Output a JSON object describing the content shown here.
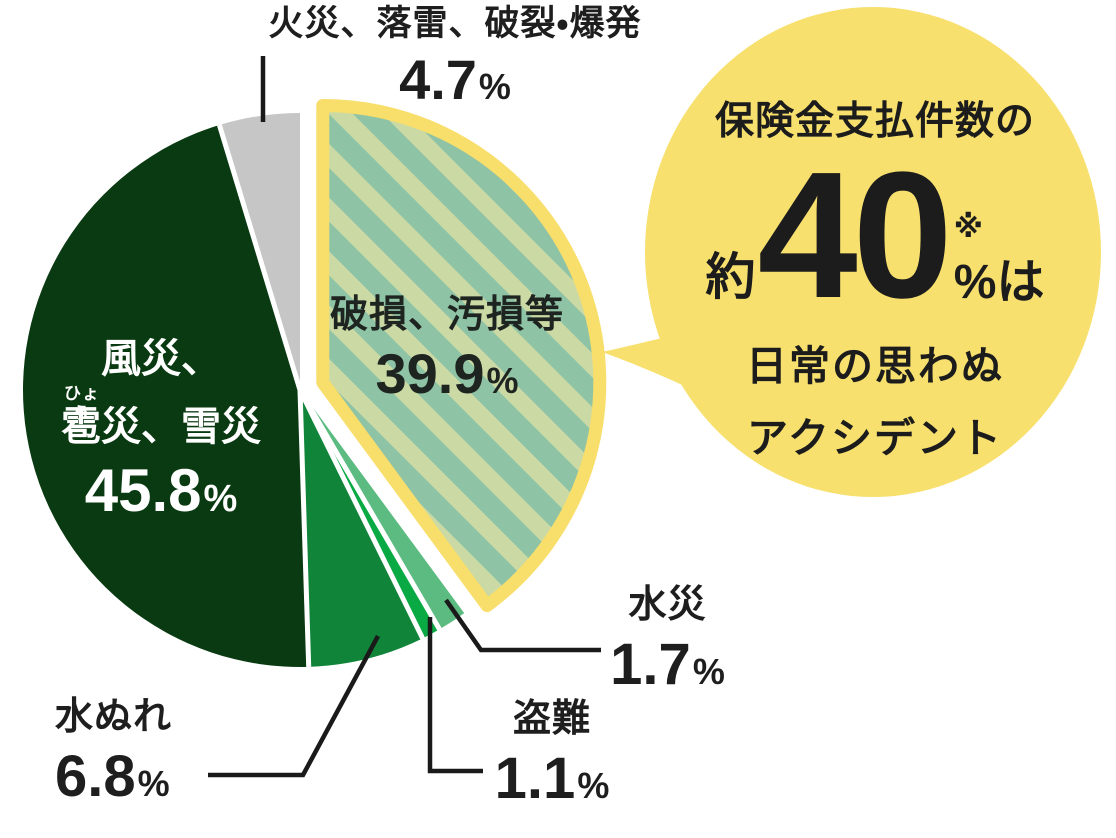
{
  "chart_data": {
    "type": "pie",
    "title": "",
    "start_angle_deg": 0,
    "direction": "clockwise",
    "unit": "%",
    "slices": [
      {
        "id": "breakage",
        "label": "破損、汚損等",
        "value": 39.9,
        "exploded": true,
        "color_base": "#8FC3A6",
        "color_stripe": "#CBDAA5",
        "outline": "#F8DE6A"
      },
      {
        "id": "flood",
        "label": "水災",
        "value": 1.7,
        "exploded": false,
        "color": "#5CBB80"
      },
      {
        "id": "theft",
        "label": "盗難",
        "value": 1.1,
        "exploded": false,
        "color": "#09A944"
      },
      {
        "id": "water-leak",
        "label": "水ぬれ",
        "value": 6.8,
        "exploded": false,
        "color": "#108539"
      },
      {
        "id": "wind-hail-snow",
        "label": "風災、雹災、雪災",
        "value": 45.8,
        "exploded": false,
        "color": "#093A11"
      },
      {
        "id": "fire",
        "label": "火災、落雷、破裂・爆発",
        "value": 4.7,
        "exploded": false,
        "color": "#C6C6C6"
      }
    ],
    "legend_position": "none",
    "grid": false
  },
  "labels": {
    "fire": {
      "name": "火災、落雷、破裂・爆発",
      "value": "4.7",
      "pct": "%"
    },
    "breakage": {
      "name": "破損、汚損等",
      "value": "39.9",
      "pct": "%"
    },
    "wind": {
      "line1": "風災、",
      "furigana": "ひょう",
      "line2": "雹災、雪災",
      "value": "45.8",
      "pct": "%"
    },
    "waterleak": {
      "name": "水ぬれ",
      "value": "6.8",
      "pct": "%"
    },
    "theft": {
      "name": "盗難",
      "value": "1.1",
      "pct": "%"
    },
    "flood": {
      "name": "水災",
      "value": "1.7",
      "pct": "%"
    }
  },
  "bubble": {
    "line1": "保険金支払件数の",
    "approx": "約",
    "number": "40",
    "note_mark": "※",
    "percent_suffix": "%は",
    "line3": "日常の思わぬ",
    "line4": "アクシデント",
    "bg_color": "#F7E06E"
  },
  "colors": {
    "leader_line": "#1a1a1a",
    "separator": "#ffffff",
    "wedge_outline": "#F8DE6A"
  }
}
